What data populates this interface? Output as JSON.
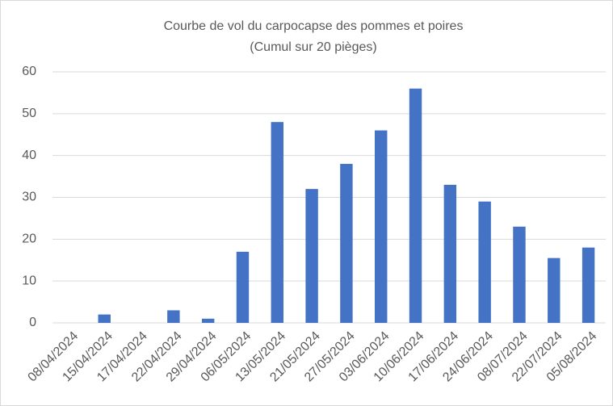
{
  "chart_data": {
    "type": "bar",
    "title": "Courbe de vol du carpocapse des pommes et poires",
    "subtitle": "(Cumul sur 20 pièges)",
    "categories": [
      "08/04/2024",
      "15/04/2024",
      "17/04/2024",
      "22/04/2024",
      "29/04/2024",
      "06/05/2024",
      "13/05/2024",
      "21/05/2024",
      "27/05/2024",
      "03/06/2024",
      "10/06/2024",
      "17/06/2024",
      "24/06/2024",
      "08/07/2024",
      "22/07/2024",
      "05/08/2024"
    ],
    "values": [
      0,
      2,
      0,
      3,
      1,
      17,
      48,
      32,
      38,
      46,
      56,
      33,
      29,
      23,
      15.5,
      18
    ],
    "color": "#4472c4",
    "ylim": [
      0,
      60
    ],
    "yticks": [
      0,
      10,
      20,
      30,
      40,
      50,
      60
    ],
    "grid": true
  }
}
